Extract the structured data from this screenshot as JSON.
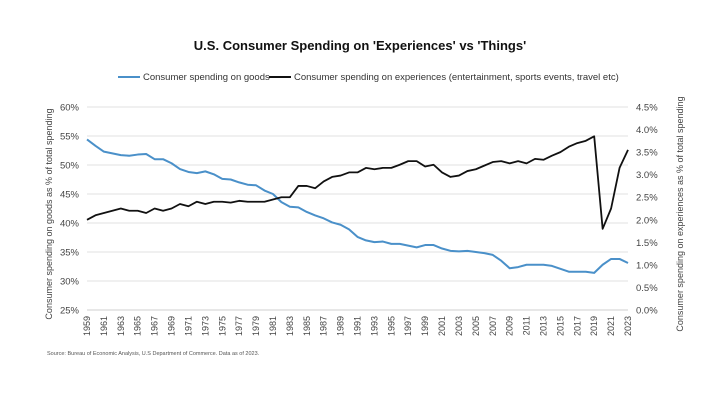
{
  "chart_data": {
    "type": "line",
    "title": "U.S. Consumer Spending on 'Experiences' vs 'Things'",
    "x": [
      1959,
      1960,
      1961,
      1962,
      1963,
      1964,
      1965,
      1966,
      1967,
      1968,
      1969,
      1970,
      1971,
      1972,
      1973,
      1974,
      1975,
      1976,
      1977,
      1978,
      1979,
      1980,
      1981,
      1982,
      1983,
      1984,
      1985,
      1986,
      1987,
      1988,
      1989,
      1990,
      1991,
      1992,
      1993,
      1994,
      1995,
      1996,
      1997,
      1998,
      1999,
      2000,
      2001,
      2002,
      2003,
      2004,
      2005,
      2006,
      2007,
      2008,
      2009,
      2010,
      2011,
      2012,
      2013,
      2014,
      2015,
      2016,
      2017,
      2018,
      2019,
      2020,
      2021,
      2022,
      2023
    ],
    "x_tick_labels": [
      "1959",
      "1961",
      "1963",
      "1965",
      "1967",
      "1969",
      "1971",
      "1973",
      "1975",
      "1977",
      "1979",
      "1981",
      "1983",
      "1985",
      "1987",
      "1989",
      "1991",
      "1993",
      "1995",
      "1997",
      "1999",
      "2001",
      "2003",
      "2005",
      "2007",
      "2009",
      "2011",
      "2013",
      "2015",
      "2017",
      "2019",
      "2021",
      "2023"
    ],
    "series": [
      {
        "name": "Consumer spending on goods",
        "axis": "left",
        "color": "#4a90c9",
        "values": [
          54.4,
          53.3,
          52.3,
          52.0,
          51.7,
          51.6,
          51.8,
          51.9,
          51.0,
          51.0,
          50.3,
          49.3,
          48.8,
          48.6,
          48.9,
          48.4,
          47.6,
          47.5,
          47.0,
          46.6,
          46.5,
          45.6,
          45.0,
          43.6,
          42.8,
          42.7,
          41.9,
          41.3,
          40.8,
          40.1,
          39.7,
          38.9,
          37.6,
          37.0,
          36.7,
          36.8,
          36.4,
          36.4,
          36.1,
          35.8,
          36.2,
          36.2,
          35.6,
          35.2,
          35.1,
          35.2,
          35.0,
          34.8,
          34.5,
          33.5,
          32.2,
          32.4,
          32.8,
          32.8,
          32.8,
          32.6,
          32.1,
          31.6,
          31.6,
          31.6,
          31.4,
          32.8,
          33.8,
          33.8,
          33.1
        ]
      },
      {
        "name": "Consumer spending on experiences (entertainment, sports events, travel etc)",
        "axis": "right",
        "color": "#111111",
        "values": [
          2.0,
          2.1,
          2.15,
          2.2,
          2.25,
          2.2,
          2.2,
          2.15,
          2.25,
          2.2,
          2.25,
          2.35,
          2.3,
          2.4,
          2.35,
          2.4,
          2.4,
          2.38,
          2.42,
          2.4,
          2.4,
          2.4,
          2.45,
          2.5,
          2.5,
          2.75,
          2.75,
          2.7,
          2.85,
          2.95,
          2.98,
          3.05,
          3.05,
          3.15,
          3.12,
          3.15,
          3.15,
          3.22,
          3.3,
          3.3,
          3.18,
          3.22,
          3.05,
          2.95,
          2.98,
          3.08,
          3.12,
          3.2,
          3.28,
          3.3,
          3.25,
          3.3,
          3.25,
          3.35,
          3.33,
          3.42,
          3.5,
          3.62,
          3.7,
          3.75,
          3.85,
          1.8,
          2.25,
          3.15,
          3.55
        ]
      }
    ],
    "ylabel_left": "Consumer spending on goods as % of total spending",
    "ylabel_right": "Consumer spending on experiences as % of total spending",
    "ylim_left": [
      25,
      60
    ],
    "ylim_right": [
      0,
      4.5
    ],
    "y_ticks_left": [
      "25%",
      "30%",
      "35%",
      "40%",
      "45%",
      "50%",
      "55%",
      "60%"
    ],
    "y_ticks_right": [
      "0.0%",
      "0.5%",
      "1.0%",
      "1.5%",
      "2.0%",
      "2.5%",
      "3.0%",
      "3.5%",
      "4.0%",
      "4.5%"
    ],
    "grid": true,
    "legend_placement": "top",
    "source": "Source: Bureau of Economic Analysis, U.S Department of Commerce. Data as of 2023."
  }
}
